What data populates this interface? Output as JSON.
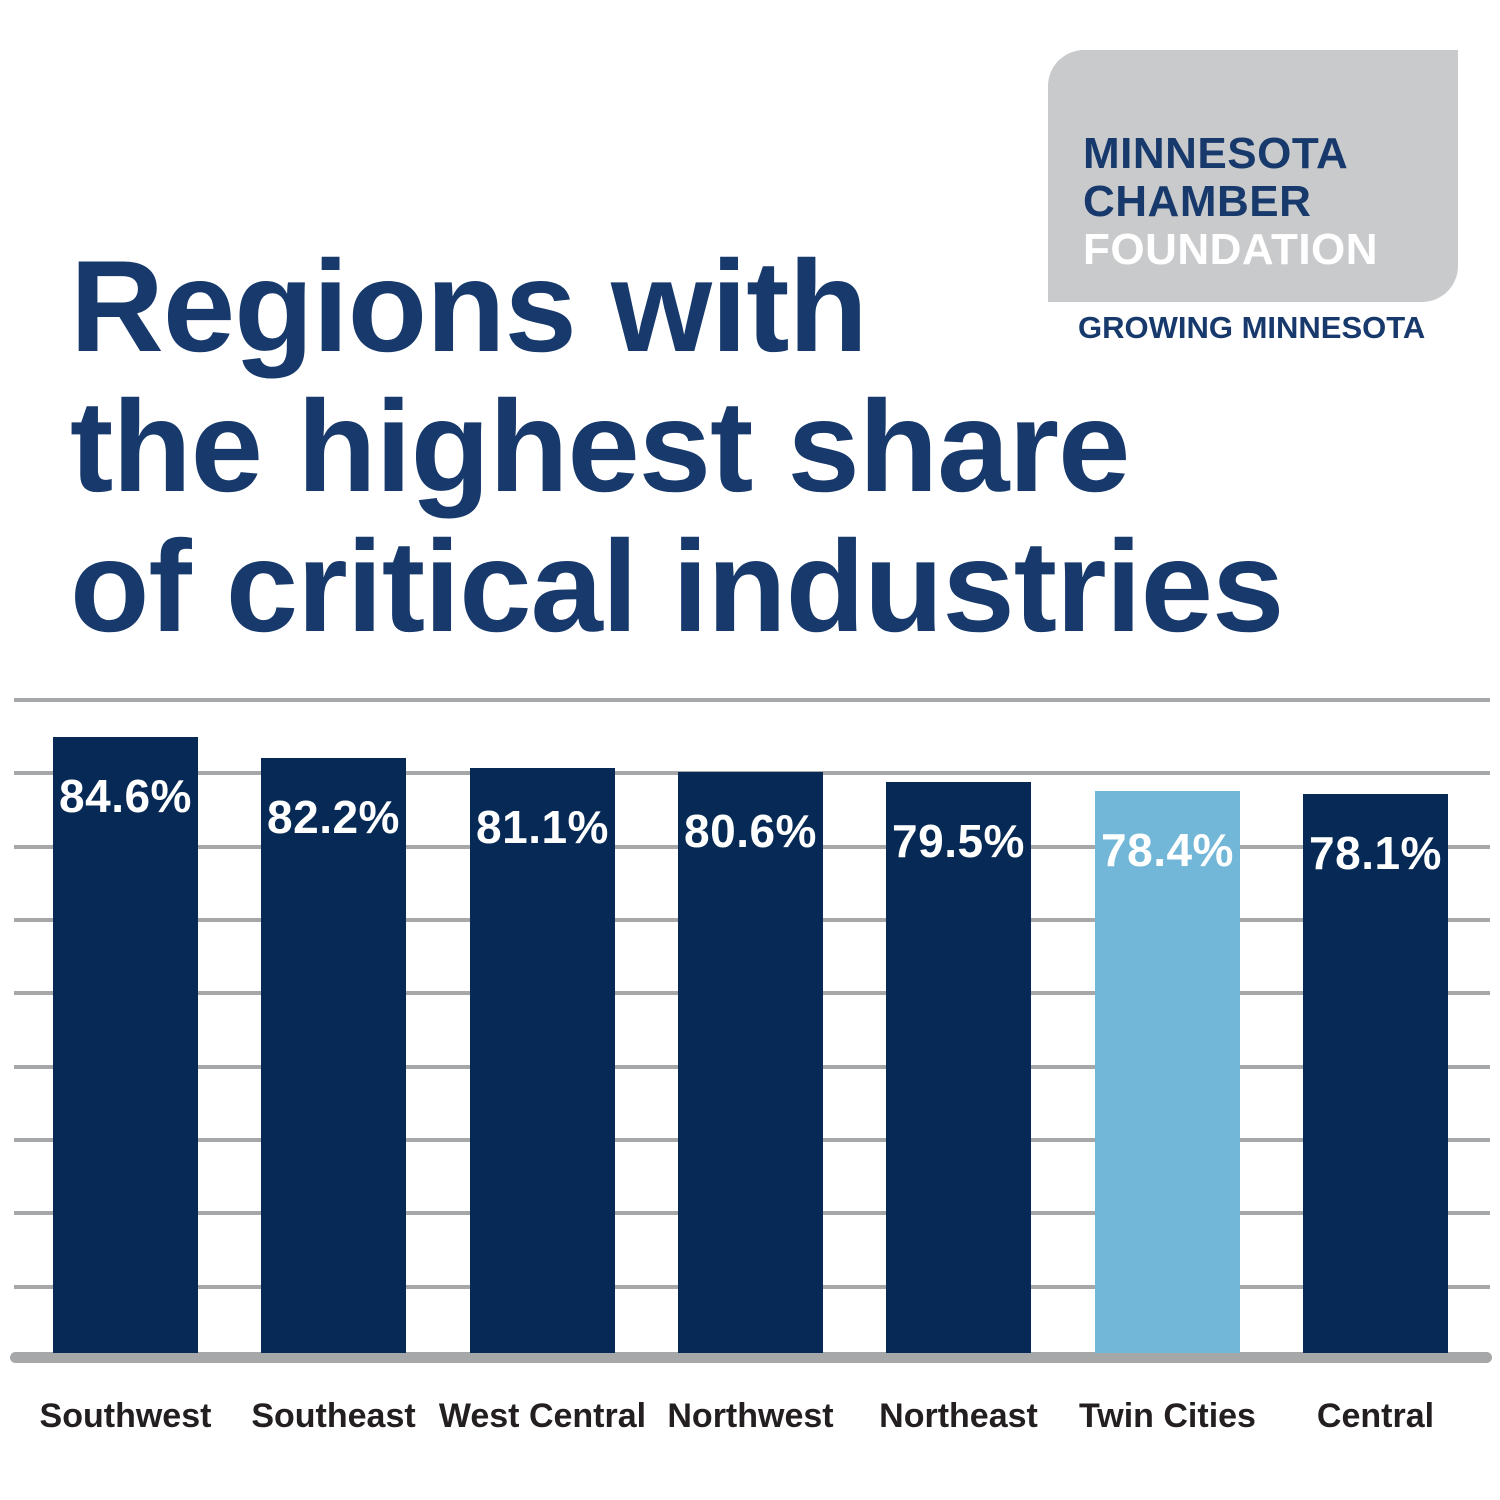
{
  "title_lines": [
    "Regions with",
    "the highest share",
    "of critical industries"
  ],
  "logo": {
    "line1": "MINNESOTA",
    "line2": "CHAMBER",
    "line3": "FOUNDATION",
    "tagline": "GROWING MINNESOTA"
  },
  "colors": {
    "navy_bar": "#062a55",
    "highlight_bar": "#72b6d8",
    "title_navy": "#17396c",
    "logo_navy": "#17396c",
    "logo_foundation_white": "#ffffff",
    "gridline_gray": "#a5a7a9",
    "logo_box_gray": "#c9cacb",
    "category_label": "#231f20",
    "value_label": "#ffffff"
  },
  "chart_data": {
    "type": "bar",
    "title": "Regions with the highest share of critical industries",
    "categories": [
      "Southwest",
      "Southeast",
      "West Central",
      "Northwest",
      "Northeast",
      "Twin Cities",
      "Central"
    ],
    "values": [
      84.6,
      82.2,
      81.1,
      80.6,
      79.5,
      78.4,
      78.1
    ],
    "value_labels": [
      "84.6%",
      "82.2%",
      "81.1%",
      "80.6%",
      "79.5%",
      "78.4%",
      "78.1%"
    ],
    "unit": "%",
    "highlight_category": "Twin Cities",
    "grid": true,
    "legend": false,
    "y_axis_labels_visible": false,
    "xlabel": "",
    "ylabel": ""
  }
}
